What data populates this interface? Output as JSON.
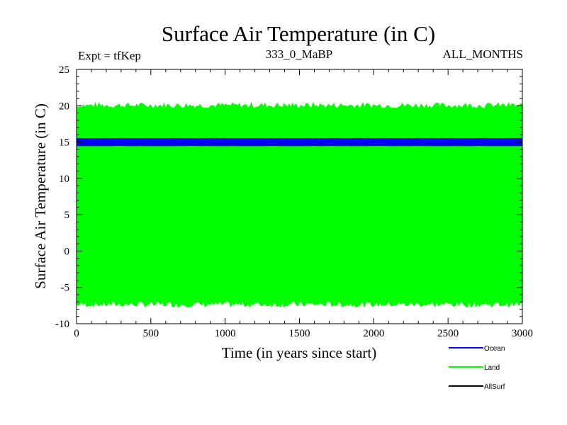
{
  "chart_data": {
    "type": "line",
    "title": "Surface Air Temperature (in C)",
    "subtitle_left": "Expt = tfKep",
    "subtitle_center": "333_0_MaBP",
    "subtitle_right": "ALL_MONTHS",
    "xlabel": "Time (in years since start)",
    "ylabel": "Surface Air Temperature (in C)",
    "xlim": [
      0,
      3000
    ],
    "ylim": [
      -10,
      25
    ],
    "x_ticks": [
      "0",
      "500",
      "1000",
      "1500",
      "2000",
      "2500",
      "3000"
    ],
    "y_ticks": [
      "-10",
      "-5",
      "0",
      "5",
      "10",
      "15",
      "20",
      "25"
    ],
    "grid": false,
    "legend_position": "bottom-right",
    "series": [
      {
        "name": "Ocean",
        "color": "#0000ff",
        "low": 14.5,
        "high": 15.5
      },
      {
        "name": "Land",
        "color": "#00ff00",
        "low": -7.3,
        "high": 20.0
      },
      {
        "name": "AllSurf",
        "color": "#000000",
        "low": null,
        "high": null
      }
    ]
  }
}
